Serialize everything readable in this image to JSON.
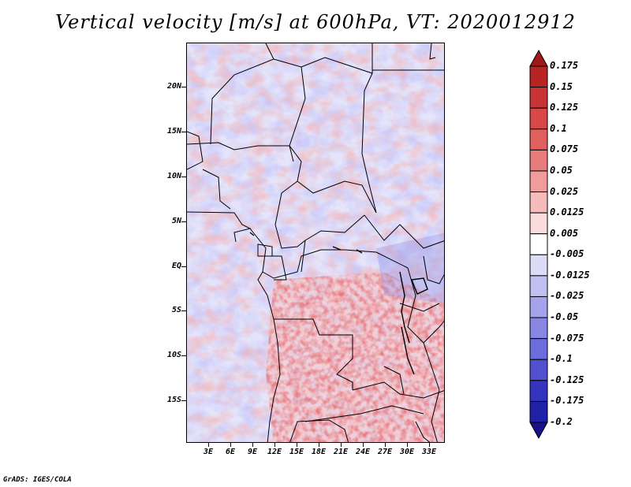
{
  "title": "Vertical velocity [m/s] at 600hPa, VT: 2020012912",
  "credit": "GrADS: IGES/COLA",
  "map": {
    "lat_labels": [
      "20N",
      "15N",
      "10N",
      "5N",
      "EQ",
      "5S",
      "10S",
      "15S"
    ],
    "lon_labels": [
      "3E",
      "6E",
      "9E",
      "12E",
      "15E",
      "18E",
      "21E",
      "24E",
      "27E",
      "30E",
      "33E"
    ]
  },
  "colorbar": {
    "labels": [
      "0.175",
      "0.15",
      "0.125",
      "0.1",
      "0.075",
      "0.05",
      "0.025",
      "0.0125",
      "0.005",
      "-0.005",
      "-0.0125",
      "-0.025",
      "-0.05",
      "-0.075",
      "-0.1",
      "-0.125",
      "-0.175",
      "-0.2"
    ],
    "colors": [
      "#a01818",
      "#b82424",
      "#c83434",
      "#d84848",
      "#e06060",
      "#e87c7c",
      "#f09c9c",
      "#f6bcbc",
      "#fbdcdc",
      "#ffffff",
      "#dcdcf6",
      "#c0c0f2",
      "#a4a4ec",
      "#8888e4",
      "#6c6cdc",
      "#5050d0",
      "#3434c0",
      "#2020a8",
      "#18108c"
    ]
  }
}
